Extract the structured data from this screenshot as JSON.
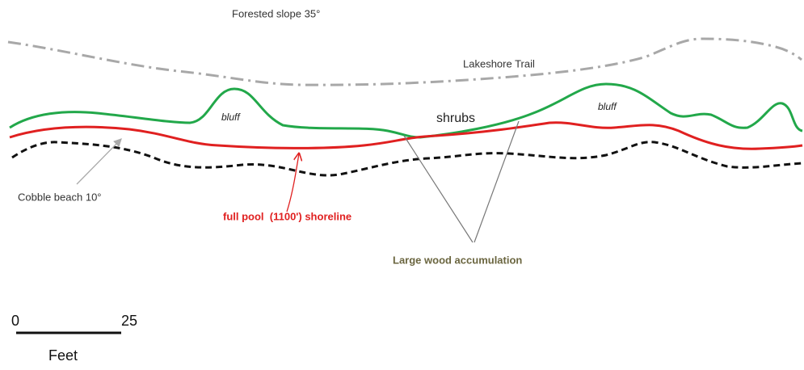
{
  "labels": {
    "slope": "Forested slope 35°",
    "trail": "Lakeshore Trail",
    "bluff_left": "bluff",
    "bluff_right": "bluff",
    "shrubs": "shrubs",
    "beach": "Cobble beach 10°",
    "shoreline": "full pool  (1100') shoreline",
    "wood": "Large wood accumulation"
  },
  "scale_bar": {
    "start": "0",
    "end": "25",
    "unit": "Feet"
  }
}
